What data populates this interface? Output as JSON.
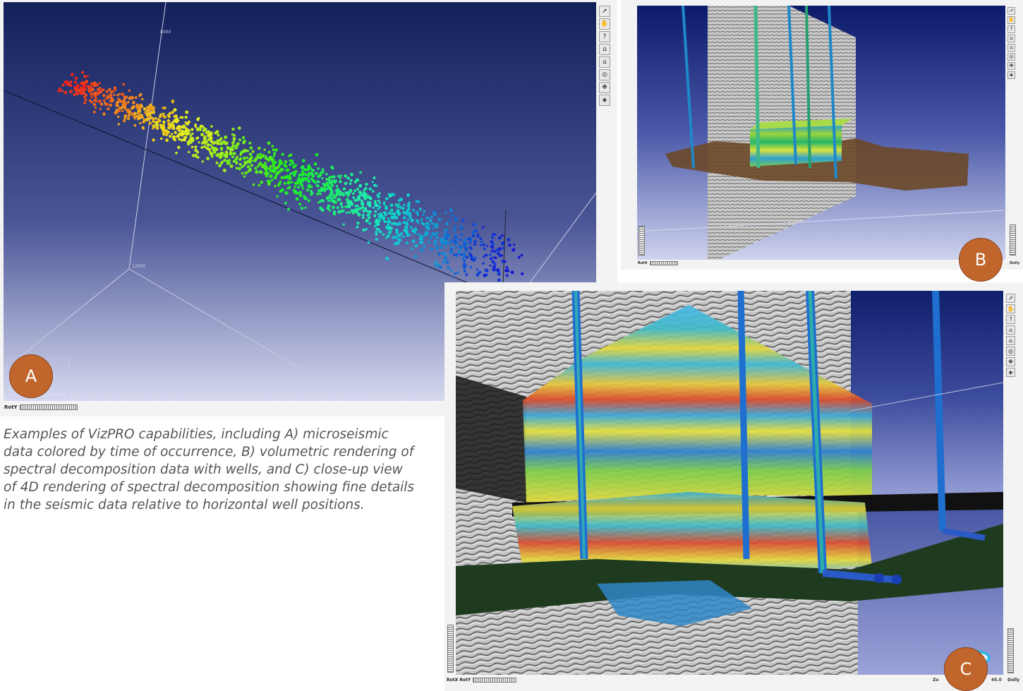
{
  "panels": {
    "a": {
      "badge": "A",
      "rot_label": "RotY",
      "axis_label_top": "8000",
      "axis_label_mid": "12000",
      "tools": [
        "pointer-icon",
        "hand-icon",
        "help-icon",
        "home-icon",
        "set-home-icon",
        "view-all-icon",
        "seek-icon",
        "perspective-icon"
      ]
    },
    "b": {
      "badge": "B",
      "rot_label": "RotX",
      "side_label": "Dolly"
    },
    "c": {
      "badge": "C",
      "rot_label": "RotX RotY",
      "zoom_label": "Zo",
      "zoom_value": "45.0",
      "side_label": "Dolly"
    }
  },
  "caption": "Examples of VizPRO capabilities, including A) microseismic data colored by time of occurrence, B) volumetric rendering of spectral decomposition data with wells, and C) close-up view of 4D rendering of spectral decomposition showing fine details in the seismic data relative to horizontal well positions.",
  "colors": {
    "badge": "#c0652b",
    "scene_bg_top": "#13205a",
    "scene_bg_bottom": "#d6d9ef",
    "caption_text": "#555555"
  }
}
